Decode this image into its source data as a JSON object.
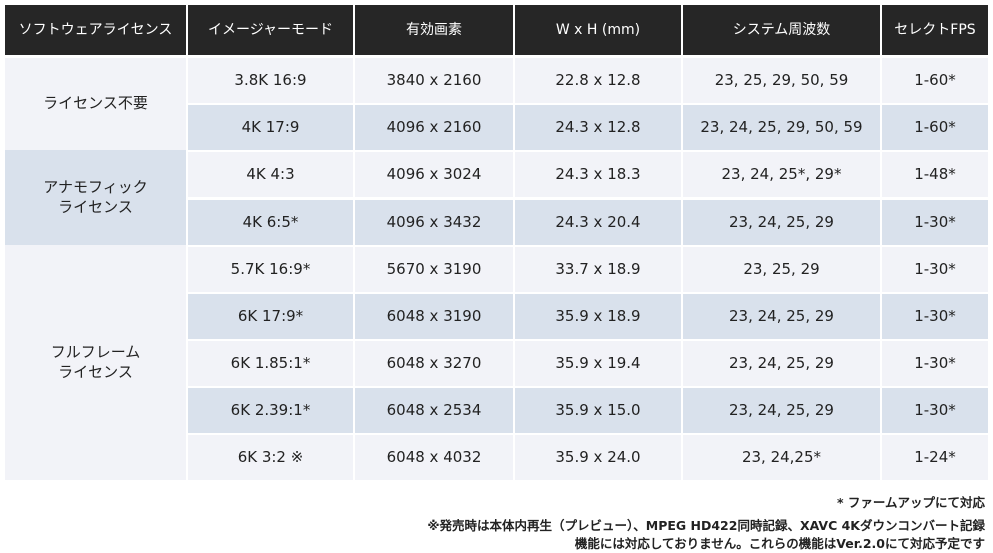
{
  "headers": [
    "ソフトウェアライセンス",
    "イメージャーモード",
    "有効画素",
    "W x H (mm)",
    "システム周波数",
    "セレクトFPS"
  ],
  "groups": [
    {
      "label": "ライセンス不要",
      "color": "#f2f3f8"
    },
    {
      "label": "アナモフィック\nライセンス",
      "color": "#d9e1ec"
    },
    {
      "label": "フルフレーム\nライセンス",
      "color": "#f2f3f8"
    }
  ],
  "rows": [
    {
      "group": 0,
      "shade": "light",
      "mode": "3.8K 16:9",
      "pixels": "3840 x 2160",
      "size": "22.8 x 12.8",
      "freq": "23, 25, 29, 50, 59",
      "fps": "1-60*"
    },
    {
      "group": 0,
      "shade": "blue",
      "mode": "4K 17:9",
      "pixels": "4096 x 2160",
      "size": "24.3 x 12.8",
      "freq": "23, 24, 25, 29, 50, 59",
      "fps": "1-60*"
    },
    {
      "group": 1,
      "shade": "light",
      "mode": "4K 4:3",
      "pixels": "4096 x 3024",
      "size": "24.3 x 18.3",
      "freq": "23, 24, 25*, 29*",
      "fps": "1-48*"
    },
    {
      "group": 1,
      "shade": "blue",
      "mode": "4K 6:5*",
      "pixels": "4096 x 3432",
      "size": "24.3 x 20.4",
      "freq": "23, 24, 25, 29",
      "fps": "1-30*"
    },
    {
      "group": 2,
      "shade": "light",
      "mode": "5.7K 16:9*",
      "pixels": "5670 x 3190",
      "size": "33.7 x 18.9",
      "freq": "23, 25, 29",
      "fps": "1-30*"
    },
    {
      "group": 2,
      "shade": "blue",
      "mode": "6K 17:9*",
      "pixels": "6048 x 3190",
      "size": "35.9 x 18.9",
      "freq": "23, 24, 25, 29",
      "fps": "1-30*"
    },
    {
      "group": 2,
      "shade": "light",
      "mode": "6K 1.85:1*",
      "pixels": "6048 x 3270",
      "size": "35.9 x 19.4",
      "freq": "23, 24, 25, 29",
      "fps": "1-30*"
    },
    {
      "group": 2,
      "shade": "blue",
      "mode": "6K 2.39:1*",
      "pixels": "6048 x 2534",
      "size": "35.9 x 15.0",
      "freq": "23, 24, 25, 29",
      "fps": "1-30*"
    },
    {
      "group": 2,
      "shade": "light",
      "mode": "6K 3:2 ※",
      "pixels": "6048 x 4032",
      "size": "35.9 x 24.0",
      "freq": "23, 24,25*",
      "fps": "1-24*"
    }
  ],
  "notes": [
    "* ファームアップにて対応",
    "※発売時は本体内再生（プレビュー）、MPEG HD422同時記録、XAVC 4Kダウンコンバート記録",
    "機能には対応しておりません。これらの機能はVer.2.0にて対応予定です"
  ]
}
